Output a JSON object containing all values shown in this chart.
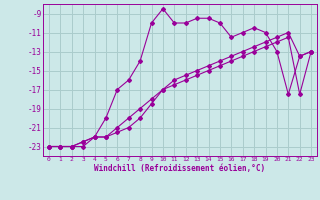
{
  "xlabel": "Windchill (Refroidissement éolien,°C)",
  "background_color": "#cce8e8",
  "grid_color": "#aacccc",
  "line_color": "#990099",
  "xlim": [
    -0.5,
    23.5
  ],
  "ylim": [
    -24,
    -8
  ],
  "yticks": [
    -9,
    -11,
    -13,
    -15,
    -17,
    -19,
    -21,
    -23
  ],
  "xticks": [
    0,
    1,
    2,
    3,
    4,
    5,
    6,
    7,
    8,
    9,
    10,
    11,
    12,
    13,
    14,
    15,
    16,
    17,
    18,
    19,
    20,
    21,
    22,
    23
  ],
  "series1_x": [
    0,
    1,
    2,
    3,
    4,
    5,
    6,
    7,
    8,
    9,
    10,
    11,
    12,
    13,
    14,
    15,
    16,
    17,
    18,
    19,
    20,
    21,
    22,
    23
  ],
  "series1_y": [
    -23,
    -23,
    -23,
    -23,
    -22,
    -20,
    -17,
    -16,
    -14,
    -10,
    -8.5,
    -10,
    -10,
    -9.5,
    -9.5,
    -10,
    -11.5,
    -11,
    -10.5,
    -11,
    -13,
    -17.5,
    -13.5,
    -13
  ],
  "series2_x": [
    0,
    1,
    2,
    3,
    4,
    5,
    6,
    7,
    8,
    9,
    10,
    11,
    12,
    13,
    14,
    15,
    16,
    17,
    18,
    19,
    20,
    21,
    22,
    23
  ],
  "series2_y": [
    -23,
    -23,
    -23,
    -22.5,
    -22,
    -22,
    -21,
    -20,
    -19,
    -18,
    -17,
    -16,
    -15.5,
    -15,
    -14.5,
    -14,
    -13.5,
    -13,
    -12.5,
    -12,
    -11.5,
    -11,
    -13.5,
    -13
  ],
  "series3_x": [
    0,
    1,
    2,
    3,
    4,
    5,
    6,
    7,
    8,
    9,
    10,
    11,
    12,
    13,
    14,
    15,
    16,
    17,
    18,
    19,
    20,
    21,
    22,
    23
  ],
  "series3_y": [
    -23,
    -23,
    -23,
    -22.5,
    -22,
    -22,
    -21.5,
    -21,
    -20,
    -18.5,
    -17,
    -16.5,
    -16,
    -15.5,
    -15,
    -14.5,
    -14,
    -13.5,
    -13,
    -12.5,
    -12,
    -11.5,
    -17.5,
    -13
  ]
}
